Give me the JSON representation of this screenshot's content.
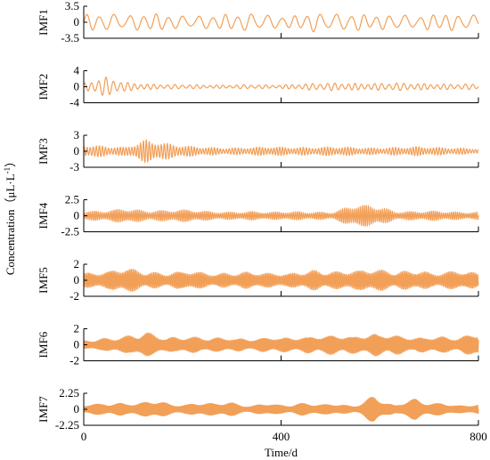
{
  "chart_data": {
    "type": "line",
    "x_axis": {
      "label": "Time/d",
      "range": [
        0,
        800
      ],
      "ticks": [
        "0",
        "400",
        "800"
      ]
    },
    "y_axis_label": "Concentration（μL·L",
    "y_axis_label_sup": "-1",
    "y_axis_label_close": "）",
    "line_color": "#f29f58",
    "panels": [
      {
        "name": "IMF1",
        "ylim": [
          -3.5,
          3.5
        ],
        "ticks": [
          "3.5",
          "0",
          "-3.5"
        ],
        "amp_frac": 0.62,
        "period_days": 28,
        "envelope": [
          0.8,
          0.9,
          0.7,
          0.9,
          0.8,
          0.6,
          0.7,
          0.8,
          0.9,
          0.7,
          0.6,
          1.0,
          0.8,
          0.9,
          0.7,
          0.8,
          0.6,
          0.9,
          0.8,
          0.7
        ]
      },
      {
        "name": "IMF2",
        "ylim": [
          -4,
          4
        ],
        "ticks": [
          "4",
          "0",
          "-4"
        ],
        "amp_frac": 0.7,
        "period_days": 14,
        "envelope": [
          0.3,
          0.9,
          0.4,
          0.25,
          0.2,
          0.2,
          0.15,
          0.15,
          0.2,
          0.15,
          0.2,
          0.3,
          0.35,
          0.3,
          0.3,
          0.35,
          0.3,
          0.25,
          0.25,
          0.25
        ]
      },
      {
        "name": "IMF3",
        "ylim": [
          -3,
          3
        ],
        "ticks": [
          "3",
          "0",
          "-3"
        ],
        "amp_frac": 0.82,
        "period_days": 6,
        "envelope": [
          0.5,
          0.4,
          0.3,
          0.9,
          0.6,
          0.4,
          0.3,
          0.25,
          0.3,
          0.35,
          0.3,
          0.3,
          0.35,
          0.3,
          0.25,
          0.3,
          0.35,
          0.3,
          0.25,
          0.2
        ]
      },
      {
        "name": "IMF4",
        "ylim": [
          -2.5,
          2.5
        ],
        "ticks": [
          "2.5",
          "0",
          "-2.5"
        ],
        "amp_frac": 0.78,
        "period_days": 4,
        "envelope": [
          0.35,
          0.4,
          0.6,
          0.4,
          0.45,
          0.5,
          0.35,
          0.3,
          0.35,
          0.3,
          0.35,
          0.3,
          0.3,
          0.9,
          0.85,
          0.35,
          0.35,
          0.4,
          0.3,
          0.3
        ]
      },
      {
        "name": "IMF5",
        "ylim": [
          -2,
          2
        ],
        "ticks": [
          "2",
          "0",
          "-2"
        ],
        "amp_frac": 0.88,
        "period_days": 3,
        "envelope": [
          0.5,
          0.6,
          0.9,
          0.6,
          0.5,
          0.7,
          0.5,
          0.5,
          0.6,
          0.5,
          0.5,
          0.7,
          0.6,
          0.7,
          0.8,
          0.6,
          0.7,
          0.5,
          0.7,
          0.5
        ]
      },
      {
        "name": "IMF6",
        "ylim": [
          -2,
          2
        ],
        "ticks": [
          "2",
          "0",
          "-2"
        ],
        "amp_frac": 0.88,
        "period_days": 2.5,
        "envelope": [
          0.3,
          0.45,
          0.6,
          0.9,
          0.5,
          0.6,
          0.5,
          0.5,
          0.4,
          0.55,
          0.5,
          0.6,
          0.7,
          0.6,
          0.8,
          0.7,
          0.5,
          0.6,
          0.5,
          0.9
        ]
      },
      {
        "name": "IMF7",
        "ylim": [
          -2.25,
          2.25
        ],
        "ticks": [
          "2.25",
          "0",
          "-2.25"
        ],
        "amp_frac": 0.85,
        "period_days": 2,
        "envelope": [
          0.3,
          0.55,
          0.4,
          0.7,
          0.5,
          0.35,
          0.6,
          0.5,
          0.3,
          0.45,
          0.35,
          0.5,
          0.4,
          0.3,
          1.0,
          0.35,
          0.85,
          0.45,
          0.35,
          0.35
        ]
      }
    ]
  }
}
